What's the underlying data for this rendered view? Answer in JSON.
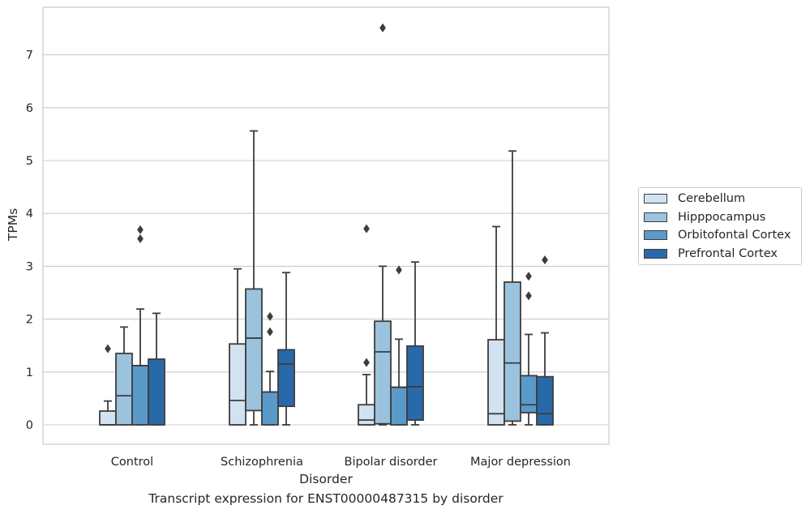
{
  "chart_data": {
    "type": "box",
    "xlabel": "Disorder",
    "ylabel": "TPMs",
    "ylim": [
      -0.35,
      7.9
    ],
    "yticks": [
      0,
      1,
      2,
      3,
      4,
      5,
      6,
      7
    ],
    "grid": "horizontal",
    "legend_position": "right",
    "categories": [
      "Control",
      "Schizophrenia",
      "Bipolar disorder",
      "Major depression"
    ],
    "series": [
      {
        "name": "Cerebellum",
        "color": "#d2e2f1",
        "boxes": [
          {
            "q1": 0,
            "median": 0,
            "q3": 0.26,
            "whisker_low": 0,
            "whisker_high": 0.45,
            "outliers": [
              1.44
            ]
          },
          {
            "q1": 0,
            "median": 0.46,
            "q3": 1.53,
            "whisker_low": 0,
            "whisker_high": 2.95,
            "outliers": []
          },
          {
            "q1": 0,
            "median": 0.09,
            "q3": 0.38,
            "whisker_low": 0,
            "whisker_high": 0.95,
            "outliers": [
              1.18,
              3.71
            ]
          },
          {
            "q1": 0,
            "median": 0.21,
            "q3": 1.61,
            "whisker_low": 0,
            "whisker_high": 3.75,
            "outliers": []
          }
        ]
      },
      {
        "name": "Hipppocampus",
        "color": "#9bc3de",
        "boxes": [
          {
            "q1": 0,
            "median": 0.55,
            "q3": 1.35,
            "whisker_low": 0,
            "whisker_high": 1.85,
            "outliers": []
          },
          {
            "q1": 0.27,
            "median": 1.64,
            "q3": 2.57,
            "whisker_low": 0,
            "whisker_high": 5.56,
            "outliers": []
          },
          {
            "q1": 0.02,
            "median": 1.38,
            "q3": 1.96,
            "whisker_low": 0,
            "whisker_high": 3.0,
            "outliers": [
              7.51
            ]
          },
          {
            "q1": 0.07,
            "median": 1.17,
            "q3": 2.7,
            "whisker_low": 0,
            "whisker_high": 5.18,
            "outliers": []
          }
        ]
      },
      {
        "name": "Orbitofontal Cortex",
        "color": "#5a9ac9",
        "boxes": [
          {
            "q1": 0,
            "median": 1.12,
            "q3": 1.12,
            "whisker_low": 0,
            "whisker_high": 2.19,
            "outliers": [
              3.52,
              3.69
            ]
          },
          {
            "q1": 0,
            "median": 0.62,
            "q3": 0.62,
            "whisker_low": 0,
            "whisker_high": 1.01,
            "outliers": [
              1.76,
              2.05
            ]
          },
          {
            "q1": 0,
            "median": 0.71,
            "q3": 0.71,
            "whisker_low": 0,
            "whisker_high": 1.62,
            "outliers": [
              2.93
            ]
          },
          {
            "q1": 0.23,
            "median": 0.38,
            "q3": 0.93,
            "whisker_low": 0,
            "whisker_high": 1.71,
            "outliers": [
              2.44,
              2.81
            ]
          }
        ]
      },
      {
        "name": "Prefrontal Cortex",
        "color": "#2a69a9",
        "boxes": [
          {
            "q1": 0,
            "median": 1.24,
            "q3": 1.24,
            "whisker_low": 0,
            "whisker_high": 2.11,
            "outliers": []
          },
          {
            "q1": 0.35,
            "median": 1.15,
            "q3": 1.42,
            "whisker_low": 0,
            "whisker_high": 2.88,
            "outliers": []
          },
          {
            "q1": 0.09,
            "median": 0.72,
            "q3": 1.49,
            "whisker_low": 0,
            "whisker_high": 3.08,
            "outliers": []
          },
          {
            "q1": 0,
            "median": 0.21,
            "q3": 0.91,
            "whisker_low": 0,
            "whisker_high": 1.74,
            "outliers": [
              3.12
            ]
          }
        ]
      }
    ]
  },
  "caption": "Transcript expression for ENST00000487315 by disorder"
}
